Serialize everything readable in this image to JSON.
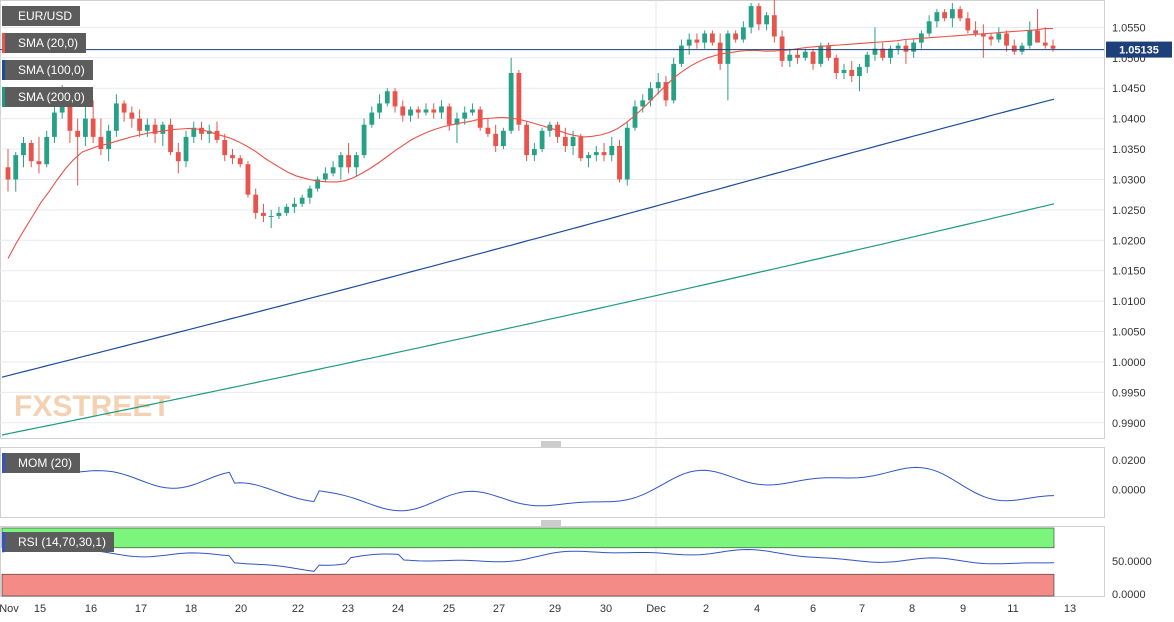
{
  "chart_data": [
    {
      "type": "candlestick",
      "title": "EUR/USD",
      "current_price": "1.05135",
      "indicators": [
        "SMA (20,0)",
        "SMA (100,0)",
        "SMA (200,0)"
      ],
      "ylim": [
        0.9875,
        1.0595
      ],
      "yticks": [
        "1.0550",
        "1.0500",
        "1.0450",
        "1.0400",
        "1.0350",
        "1.0300",
        "1.0250",
        "1.0200",
        "1.0150",
        "1.0100",
        "1.0050",
        "1.0000",
        "0.9950",
        "0.9900"
      ],
      "xlabels": [
        "Nov",
        "15",
        "16",
        "17",
        "18",
        "20",
        "22",
        "23",
        "24",
        "25",
        "27",
        "29",
        "30",
        "Dec",
        "2",
        "4",
        "6",
        "7",
        "8",
        "9",
        "11",
        "13"
      ],
      "candles": [
        [
          1.032,
          1.035,
          1.028,
          1.03
        ],
        [
          1.03,
          1.0345,
          1.028,
          1.034
        ],
        [
          1.034,
          1.037,
          1.032,
          1.036
        ],
        [
          1.036,
          1.0365,
          1.032,
          1.033
        ],
        [
          1.033,
          1.037,
          1.031,
          1.0325
        ],
        [
          1.0325,
          1.038,
          1.032,
          1.037
        ],
        [
          1.037,
          1.042,
          1.036,
          1.041
        ],
        [
          1.041,
          1.0455,
          1.04,
          1.042
        ],
        [
          1.042,
          1.043,
          1.036,
          1.038
        ],
        [
          1.038,
          1.04,
          1.029,
          1.037
        ],
        [
          1.037,
          1.042,
          1.0355,
          1.04
        ],
        [
          1.04,
          1.043,
          1.036,
          1.037
        ],
        [
          1.037,
          1.04,
          1.034,
          1.035
        ],
        [
          1.035,
          1.039,
          1.033,
          1.038
        ],
        [
          1.038,
          1.044,
          1.037,
          1.0425
        ],
        [
          1.0425,
          1.043,
          1.0395,
          1.041
        ],
        [
          1.041,
          1.042,
          1.0385,
          1.04
        ],
        [
          1.04,
          1.0415,
          1.037,
          1.038
        ],
        [
          1.038,
          1.04,
          1.037,
          1.039
        ],
        [
          1.039,
          1.04,
          1.036,
          1.0375
        ],
        [
          1.0375,
          1.0395,
          1.0355,
          1.039
        ],
        [
          1.039,
          1.04,
          1.034,
          1.0345
        ],
        [
          1.0345,
          1.036,
          1.031,
          1.033
        ],
        [
          1.033,
          1.038,
          1.032,
          1.037
        ],
        [
          1.037,
          1.0395,
          1.036,
          1.0385
        ],
        [
          1.0385,
          1.0395,
          1.0365,
          1.0375
        ],
        [
          1.0375,
          1.039,
          1.036,
          1.038
        ],
        [
          1.038,
          1.0395,
          1.036,
          1.0365
        ],
        [
          1.0365,
          1.0375,
          1.033,
          1.034
        ],
        [
          1.034,
          1.035,
          1.0325,
          1.0335
        ],
        [
          1.0335,
          1.034,
          1.032,
          1.0325
        ],
        [
          1.0325,
          1.033,
          1.027,
          1.0275
        ],
        [
          1.0275,
          1.0285,
          1.0235,
          1.0245
        ],
        [
          1.0245,
          1.026,
          1.023,
          1.024
        ],
        [
          1.024,
          1.025,
          1.022,
          1.024
        ],
        [
          1.024,
          1.0255,
          1.0235,
          1.0245
        ],
        [
          1.0245,
          1.026,
          1.024,
          1.0255
        ],
        [
          1.0255,
          1.027,
          1.0245,
          1.026
        ],
        [
          1.026,
          1.0275,
          1.0255,
          1.027
        ],
        [
          1.027,
          1.029,
          1.026,
          1.0285
        ],
        [
          1.0285,
          1.0305,
          1.028,
          1.03
        ],
        [
          1.03,
          1.032,
          1.0295,
          1.031
        ],
        [
          1.031,
          1.033,
          1.0305,
          1.032
        ],
        [
          1.032,
          1.0345,
          1.03,
          1.034
        ],
        [
          1.034,
          1.036,
          1.031,
          1.032
        ],
        [
          1.032,
          1.0345,
          1.0305,
          1.034
        ],
        [
          1.034,
          1.04,
          1.0335,
          1.039
        ],
        [
          1.039,
          1.042,
          1.0385,
          1.041
        ],
        [
          1.041,
          1.044,
          1.04,
          1.0425
        ],
        [
          1.0425,
          1.045,
          1.042,
          1.0445
        ],
        [
          1.0445,
          1.045,
          1.041,
          1.042
        ],
        [
          1.042,
          1.043,
          1.0395,
          1.0405
        ],
        [
          1.0405,
          1.042,
          1.0395,
          1.0415
        ],
        [
          1.0415,
          1.042,
          1.04,
          1.041
        ],
        [
          1.041,
          1.0425,
          1.0405,
          1.0415
        ],
        [
          1.0415,
          1.0425,
          1.04,
          1.041
        ],
        [
          1.041,
          1.043,
          1.04,
          1.042
        ],
        [
          1.042,
          1.0425,
          1.038,
          1.039
        ],
        [
          1.039,
          1.041,
          1.036,
          1.04
        ],
        [
          1.04,
          1.042,
          1.039,
          1.041
        ],
        [
          1.041,
          1.0425,
          1.0405,
          1.0415
        ],
        [
          1.0415,
          1.042,
          1.038,
          1.0385
        ],
        [
          1.0385,
          1.04,
          1.037,
          1.0375
        ],
        [
          1.0375,
          1.039,
          1.0345,
          1.0355
        ],
        [
          1.0355,
          1.0385,
          1.035,
          1.038
        ],
        [
          1.038,
          1.05,
          1.0375,
          1.0475
        ],
        [
          1.0475,
          1.048,
          1.038,
          1.039
        ],
        [
          1.039,
          1.0395,
          1.033,
          1.034
        ],
        [
          1.034,
          1.036,
          1.033,
          1.035
        ],
        [
          1.035,
          1.0385,
          1.0345,
          1.038
        ],
        [
          1.038,
          1.0395,
          1.037,
          1.039
        ],
        [
          1.039,
          1.0395,
          1.036,
          1.037
        ],
        [
          1.037,
          1.0385,
          1.0345,
          1.0355
        ],
        [
          1.0355,
          1.038,
          1.034,
          1.037
        ],
        [
          1.037,
          1.0375,
          1.033,
          1.0335
        ],
        [
          1.0335,
          1.0345,
          1.032,
          1.034
        ],
        [
          1.034,
          1.0355,
          1.033,
          1.0345
        ],
        [
          1.0345,
          1.036,
          1.033,
          1.034
        ],
        [
          1.034,
          1.037,
          1.033,
          1.0355
        ],
        [
          1.0355,
          1.0365,
          1.0295,
          1.03
        ],
        [
          1.03,
          1.0395,
          1.029,
          1.0385
        ],
        [
          1.0385,
          1.043,
          1.038,
          1.042
        ],
        [
          1.042,
          1.044,
          1.041,
          1.043
        ],
        [
          1.043,
          1.046,
          1.042,
          1.045
        ],
        [
          1.045,
          1.0475,
          1.044,
          1.046
        ],
        [
          1.046,
          1.047,
          1.042,
          1.043
        ],
        [
          1.043,
          1.05,
          1.0425,
          1.049
        ],
        [
          1.049,
          1.053,
          1.0485,
          1.052
        ],
        [
          1.052,
          1.054,
          1.0505,
          1.053
        ],
        [
          1.053,
          1.054,
          1.0515,
          1.0525
        ],
        [
          1.0525,
          1.0545,
          1.0515,
          1.054
        ],
        [
          1.054,
          1.0545,
          1.052,
          1.0525
        ],
        [
          1.0525,
          1.054,
          1.048,
          1.049
        ],
        [
          1.049,
          1.0545,
          1.043,
          1.054
        ],
        [
          1.054,
          1.0545,
          1.0525,
          1.053
        ],
        [
          1.053,
          1.056,
          1.0525,
          1.055
        ],
        [
          1.055,
          1.059,
          1.054,
          1.0585
        ],
        [
          1.0585,
          1.059,
          1.0545,
          1.0555
        ],
        [
          1.0555,
          1.0575,
          1.0545,
          1.057
        ],
        [
          1.057,
          1.0595,
          1.0525,
          1.0535
        ],
        [
          1.0535,
          1.0545,
          1.0485,
          1.0495
        ],
        [
          1.0495,
          1.0515,
          1.0485,
          1.0505
        ],
        [
          1.0505,
          1.0515,
          1.049,
          1.05
        ],
        [
          1.05,
          1.0515,
          1.0495,
          1.051
        ],
        [
          1.051,
          1.0515,
          1.048,
          1.049
        ],
        [
          1.049,
          1.0525,
          1.0485,
          1.052
        ],
        [
          1.052,
          1.0525,
          1.0495,
          1.05
        ],
        [
          1.05,
          1.0505,
          1.0465,
          1.0475
        ],
        [
          1.0475,
          1.049,
          1.0465,
          1.048
        ],
        [
          1.048,
          1.0495,
          1.046,
          1.047
        ],
        [
          1.047,
          1.049,
          1.0445,
          1.0485
        ],
        [
          1.0485,
          1.051,
          1.0475,
          1.0505
        ],
        [
          1.0505,
          1.055,
          1.0495,
          1.0515
        ],
        [
          1.0515,
          1.0525,
          1.0495,
          1.05
        ],
        [
          1.05,
          1.052,
          1.049,
          1.0515
        ],
        [
          1.0515,
          1.0525,
          1.0505,
          1.052
        ],
        [
          1.052,
          1.053,
          1.049,
          1.051
        ],
        [
          1.051,
          1.053,
          1.05,
          1.0525
        ],
        [
          1.0525,
          1.0545,
          1.0515,
          1.054
        ],
        [
          1.054,
          1.057,
          1.0535,
          1.056
        ],
        [
          1.056,
          1.058,
          1.055,
          1.0575
        ],
        [
          1.0575,
          1.058,
          1.056,
          1.0565
        ],
        [
          1.0565,
          1.059,
          1.055,
          1.058
        ],
        [
          1.058,
          1.0585,
          1.056,
          1.0565
        ],
        [
          1.0565,
          1.0575,
          1.054,
          1.0545
        ],
        [
          1.0545,
          1.056,
          1.0535,
          1.054
        ],
        [
          1.054,
          1.0555,
          1.05,
          1.0535
        ],
        [
          1.0535,
          1.054,
          1.052,
          1.053
        ],
        [
          1.053,
          1.055,
          1.0525,
          1.054
        ],
        [
          1.054,
          1.0545,
          1.051,
          1.052
        ],
        [
          1.052,
          1.053,
          1.0505,
          1.051
        ],
        [
          1.051,
          1.0525,
          1.0505,
          1.052
        ],
        [
          1.052,
          1.056,
          1.0515,
          1.0545
        ],
        [
          1.0545,
          1.058,
          1.053,
          1.0525
        ],
        [
          1.0525,
          1.055,
          1.0515,
          1.052
        ],
        [
          1.052,
          1.053,
          1.051,
          1.0515
        ]
      ],
      "sma20": [
        1.017,
        1.0195,
        1.0218,
        1.024,
        1.0262,
        1.028,
        1.03,
        1.0318,
        1.0333,
        1.0345,
        1.035,
        1.0355,
        1.0358,
        1.0362,
        1.0366,
        1.037,
        1.0373,
        1.0376,
        1.0378,
        1.038,
        1.0382,
        1.0383,
        1.0384,
        1.0383,
        1.038,
        1.0376,
        1.0372,
        1.0368,
        1.0362,
        1.0355,
        1.0347,
        1.0337,
        1.0328,
        1.032,
        1.0312,
        1.0306,
        1.0302,
        1.0299,
        1.0297,
        1.0296,
        1.0296,
        1.0298,
        1.0303,
        1.031,
        1.0318,
        1.0327,
        1.0337,
        1.0347,
        1.0356,
        1.0365,
        1.0372,
        1.0378,
        1.0383,
        1.0387,
        1.039,
        1.0393,
        1.0395,
        1.0398,
        1.04,
        1.0401,
        1.0402,
        1.0401,
        1.0399,
        1.0396,
        1.0392,
        1.0388,
        1.0384,
        1.038,
        1.0375,
        1.0372,
        1.037,
        1.0371,
        1.0373,
        1.0377,
        1.0383,
        1.0392,
        1.0403,
        1.0415,
        1.0428,
        1.0442,
        1.0455,
        1.0468,
        1.0478,
        1.0487,
        1.0494,
        1.05,
        1.0504,
        1.0507,
        1.0509,
        1.0511,
        1.0512,
        1.0512,
        1.0511,
        1.0511,
        1.0512,
        1.0513,
        1.0515,
        1.0517,
        1.0518,
        1.0519,
        1.052,
        1.0521,
        1.0522,
        1.0523,
        1.0524,
        1.0525,
        1.0526,
        1.0527,
        1.0528,
        1.053,
        1.0531,
        1.0532,
        1.0533,
        1.0534,
        1.0535,
        1.0536,
        1.0537,
        1.0538,
        1.0539,
        1.054,
        1.0541,
        1.0542,
        1.0543,
        1.0544,
        1.0545,
        1.0546,
        1.0548,
        1.0548
      ],
      "sma100_start": 0.9975,
      "sma100_end": 1.0432,
      "sma200_start": 0.988,
      "sma200_end": 1.026
    },
    {
      "type": "line",
      "title": "MOM (20)",
      "yticks": [
        "0.0200",
        "0.0000"
      ],
      "ylim": [
        -0.019,
        0.029
      ]
    },
    {
      "type": "line",
      "title": "RSI (14,70,30,1)",
      "yticks": [
        "50.0000",
        "0.0000"
      ],
      "ylim": [
        0,
        100
      ],
      "overbought": 70,
      "oversold": 30
    }
  ],
  "watermark": "FXSTREET",
  "colors": {
    "bull": "#26a186",
    "bear": "#e8534b",
    "sma20": "#e8534b",
    "sma100": "#1d4c9c",
    "sma200": "#1e9a80",
    "mom": "#2f55c9",
    "rsi": "#2f55c9",
    "ob": "#7cf57c",
    "os": "#f58b86"
  }
}
